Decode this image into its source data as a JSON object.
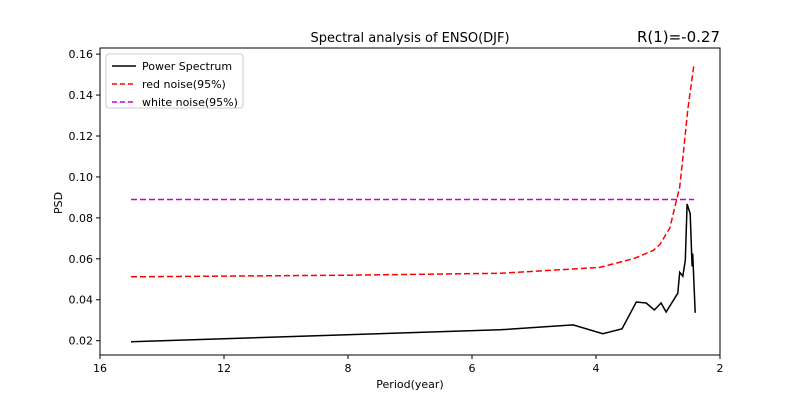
{
  "chart_data": {
    "type": "line",
    "title": "Spectral analysis of ENSO(DJF)",
    "annotation": "R(1)=-0.27",
    "xlabel": "Period(year)",
    "ylabel": "PSD",
    "x_ticks": [
      16,
      12,
      8,
      6,
      4,
      2
    ],
    "y_ticks": [
      0.02,
      0.04,
      0.06,
      0.08,
      0.1,
      0.12,
      0.14,
      0.16
    ],
    "y_tick_labels": [
      "0.02",
      "0.04",
      "0.06",
      "0.08",
      "0.10",
      "0.12",
      "0.14",
      "0.16"
    ],
    "xlim": [
      16,
      2
    ],
    "ylim": [
      0.013,
      0.163
    ],
    "grid": false,
    "legend_position": "top-left",
    "series": [
      {
        "name": "Power Spectrum",
        "color": "#000000",
        "style": "solid",
        "x": [
          15,
          5.55,
          4.37,
          3.89,
          3.58,
          3.35,
          3.19,
          3.06,
          2.95,
          2.87,
          2.68,
          2.65,
          2.6,
          2.56,
          2.53,
          2.48,
          2.45,
          2.44,
          2.4
        ],
        "y": [
          0.0195,
          0.0253,
          0.0277,
          0.0234,
          0.0258,
          0.0389,
          0.0384,
          0.035,
          0.0384,
          0.034,
          0.0432,
          0.0534,
          0.0515,
          0.0592,
          0.0868,
          0.082,
          0.0563,
          0.0626,
          0.0336
        ]
      },
      {
        "name": "red noise(95%)",
        "color": "#ff0000",
        "style": "dashed",
        "x": [
          15,
          8,
          5.55,
          3.94,
          3.4,
          3.08,
          2.97,
          2.89,
          2.81,
          2.73,
          2.65,
          2.6,
          2.52,
          2.42
        ],
        "y": [
          0.0512,
          0.052,
          0.0529,
          0.0558,
          0.06,
          0.064,
          0.067,
          0.071,
          0.075,
          0.085,
          0.095,
          0.109,
          0.133,
          0.155
        ]
      },
      {
        "name": "white noise(95%)",
        "color": "#cc00cc",
        "style": "dashed",
        "x": [
          15,
          2.42
        ],
        "y": [
          0.089,
          0.089
        ]
      }
    ]
  }
}
